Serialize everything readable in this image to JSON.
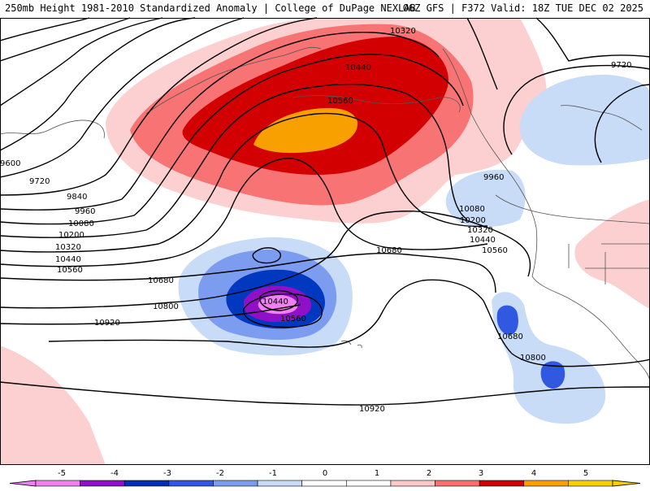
{
  "header": {
    "left": "250mb Height 1981-2010 Standardized Anomaly | College of DuPage NEXLAB",
    "right": "06Z GFS | F372 Valid: 18Z TUE DEC 02 2025"
  },
  "contour_labels": [
    "10320",
    "10440",
    "10560",
    "9720",
    "9600",
    "9720",
    "9840",
    "9960",
    "10080",
    "10200",
    "10320",
    "10440",
    "10560",
    "10680",
    "10800",
    "10920",
    "10680",
    "10440",
    "10560",
    "9960",
    "10080",
    "10200",
    "10320",
    "10440",
    "10560",
    "10680",
    "10800",
    "10920"
  ],
  "colorbar": {
    "ticks": [
      "-5",
      "-4",
      "-3",
      "-2",
      "-1",
      "0",
      "1",
      "2",
      "3",
      "4",
      "5"
    ],
    "colors": [
      "#f080f0",
      "#9010c8",
      "#0030b0",
      "#3058e0",
      "#7c9cf0",
      "#c8dcf8",
      "#ffffff",
      "#ffffff",
      "#fcc8c8",
      "#f87070",
      "#d00000",
      "#f8a000",
      "#f8d000"
    ]
  }
}
